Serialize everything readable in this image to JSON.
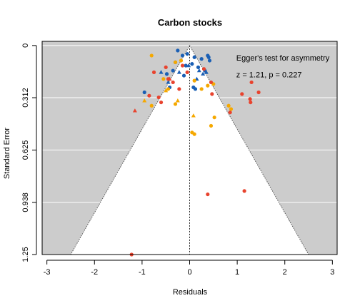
{
  "chart_data": {
    "type": "scatter",
    "title": "Carbon stocks",
    "xlabel": "Residuals",
    "ylabel": "Standard Error",
    "xlim": [
      -3.1,
      3.1
    ],
    "ylim": [
      1.25,
      -0.025
    ],
    "y_reversed": true,
    "x_ticks": [
      -3,
      -2,
      -1,
      0,
      1,
      2,
      3
    ],
    "x_tick_labels": [
      "-3",
      "-2",
      "-1",
      "0",
      "1",
      "2",
      "3"
    ],
    "y_ticks": [
      0,
      0.312,
      0.625,
      0.938,
      1.25
    ],
    "y_tick_labels": [
      "0",
      "0.312",
      "0.625",
      "0.938",
      "1.25"
    ],
    "background_color": "#cccccc",
    "funnel_fill": "#ffffff",
    "funnel_slope": 2.0,
    "reference_line_x": 0,
    "grid": "horizontal white lines at y ticks",
    "annotations": [
      {
        "text": "Egger's test for asymmetry",
        "x": 0.98,
        "y": 0.09
      },
      {
        "text": "z = 1.21, p = 0.227",
        "x": 0.98,
        "y": 0.19
      }
    ],
    "series": [
      {
        "color": "#1a5fb4",
        "points": [
          {
            "x": -0.25,
            "y": 0.03,
            "shape": "circle"
          },
          {
            "x": -0.15,
            "y": 0.06,
            "shape": "circle"
          },
          {
            "x": -0.05,
            "y": 0.05,
            "shape": "circle"
          },
          {
            "x": 0.1,
            "y": 0.07,
            "shape": "circle"
          },
          {
            "x": 0.25,
            "y": 0.08,
            "shape": "circle"
          },
          {
            "x": 0.38,
            "y": 0.06,
            "shape": "circle"
          },
          {
            "x": 0.4,
            "y": 0.07,
            "shape": "circle"
          },
          {
            "x": 0.42,
            "y": 0.09,
            "shape": "circle"
          },
          {
            "x": -0.3,
            "y": 0.1,
            "shape": "circle"
          },
          {
            "x": -0.08,
            "y": 0.12,
            "shape": "circle"
          },
          {
            "x": 0.05,
            "y": 0.11,
            "shape": "circle"
          },
          {
            "x": 0.18,
            "y": 0.13,
            "shape": "circle"
          },
          {
            "x": 0.32,
            "y": 0.15,
            "shape": "circle"
          },
          {
            "x": -0.35,
            "y": 0.15,
            "shape": "circle"
          },
          {
            "x": -0.48,
            "y": 0.17,
            "shape": "circle"
          },
          {
            "x": -0.42,
            "y": 0.25,
            "shape": "circle"
          },
          {
            "x": -0.12,
            "y": 0.18,
            "shape": "circle"
          },
          {
            "x": 0.08,
            "y": 0.25,
            "shape": "circle"
          },
          {
            "x": 0.12,
            "y": 0.26,
            "shape": "circle"
          },
          {
            "x": -0.95,
            "y": 0.28,
            "shape": "circle"
          },
          {
            "x": -0.6,
            "y": 0.16,
            "shape": "triangle"
          },
          {
            "x": -0.22,
            "y": 0.16,
            "shape": "triangle"
          },
          {
            "x": -0.02,
            "y": 0.12,
            "shape": "triangle"
          },
          {
            "x": 0.2,
            "y": 0.15,
            "shape": "triangle"
          },
          {
            "x": 0.28,
            "y": 0.17,
            "shape": "triangle"
          },
          {
            "x": 0.35,
            "y": 0.16,
            "shape": "triangle"
          },
          {
            "x": 0.15,
            "y": 0.2,
            "shape": "triangle"
          },
          {
            "x": -0.45,
            "y": 0.22,
            "shape": "triangle"
          }
        ]
      },
      {
        "color": "#f5a800",
        "points": [
          {
            "x": -0.8,
            "y": 0.06,
            "shape": "circle"
          },
          {
            "x": -0.3,
            "y": 0.1,
            "shape": "circle"
          },
          {
            "x": -0.18,
            "y": 0.09,
            "shape": "circle"
          },
          {
            "x": -0.55,
            "y": 0.2,
            "shape": "circle"
          },
          {
            "x": -0.45,
            "y": 0.26,
            "shape": "circle"
          },
          {
            "x": 0.1,
            "y": 0.21,
            "shape": "circle"
          },
          {
            "x": 0.38,
            "y": 0.24,
            "shape": "circle"
          },
          {
            "x": -0.8,
            "y": 0.36,
            "shape": "circle"
          },
          {
            "x": -0.3,
            "y": 0.35,
            "shape": "circle"
          },
          {
            "x": 0.25,
            "y": 0.26,
            "shape": "circle"
          },
          {
            "x": 0.5,
            "y": 0.23,
            "shape": "circle"
          },
          {
            "x": 0.82,
            "y": 0.36,
            "shape": "circle"
          },
          {
            "x": 0.87,
            "y": 0.38,
            "shape": "circle"
          },
          {
            "x": 0.05,
            "y": 0.52,
            "shape": "circle"
          },
          {
            "x": 0.1,
            "y": 0.53,
            "shape": "circle"
          },
          {
            "x": 0.45,
            "y": 0.48,
            "shape": "circle"
          },
          {
            "x": 0.52,
            "y": 0.43,
            "shape": "circle"
          },
          {
            "x": -0.5,
            "y": 0.27,
            "shape": "triangle"
          },
          {
            "x": -0.95,
            "y": 0.33,
            "shape": "triangle"
          },
          {
            "x": -0.25,
            "y": 0.33,
            "shape": "triangle"
          },
          {
            "x": 0.08,
            "y": 0.42,
            "shape": "triangle"
          }
        ]
      },
      {
        "color": "#e8432e",
        "points": [
          {
            "x": -0.5,
            "y": 0.13,
            "shape": "circle"
          },
          {
            "x": -0.45,
            "y": 0.2,
            "shape": "circle"
          },
          {
            "x": -0.35,
            "y": 0.22,
            "shape": "circle"
          },
          {
            "x": -0.15,
            "y": 0.12,
            "shape": "circle"
          },
          {
            "x": -0.05,
            "y": 0.16,
            "shape": "circle"
          },
          {
            "x": -0.22,
            "y": 0.26,
            "shape": "circle"
          },
          {
            "x": -0.65,
            "y": 0.31,
            "shape": "circle"
          },
          {
            "x": -0.6,
            "y": 0.34,
            "shape": "circle"
          },
          {
            "x": -0.75,
            "y": 0.16,
            "shape": "circle"
          },
          {
            "x": -0.85,
            "y": 0.3,
            "shape": "circle"
          },
          {
            "x": 0.3,
            "y": 0.14,
            "shape": "circle"
          },
          {
            "x": 0.45,
            "y": 0.22,
            "shape": "circle"
          },
          {
            "x": 0.47,
            "y": 0.29,
            "shape": "circle"
          },
          {
            "x": 0.85,
            "y": 0.4,
            "shape": "circle"
          },
          {
            "x": 1.1,
            "y": 0.29,
            "shape": "circle"
          },
          {
            "x": 1.27,
            "y": 0.32,
            "shape": "circle"
          },
          {
            "x": 1.28,
            "y": 0.34,
            "shape": "circle"
          },
          {
            "x": 1.3,
            "y": 0.22,
            "shape": "circle"
          },
          {
            "x": 1.45,
            "y": 0.28,
            "shape": "circle"
          },
          {
            "x": 0.38,
            "y": 0.89,
            "shape": "circle"
          },
          {
            "x": 1.15,
            "y": 0.87,
            "shape": "circle"
          },
          {
            "x": -1.22,
            "y": 1.25,
            "shape": "circle"
          },
          {
            "x": -1.15,
            "y": 0.39,
            "shape": "triangle"
          },
          {
            "x": -0.42,
            "y": 0.2,
            "shape": "triangle"
          }
        ]
      }
    ]
  }
}
